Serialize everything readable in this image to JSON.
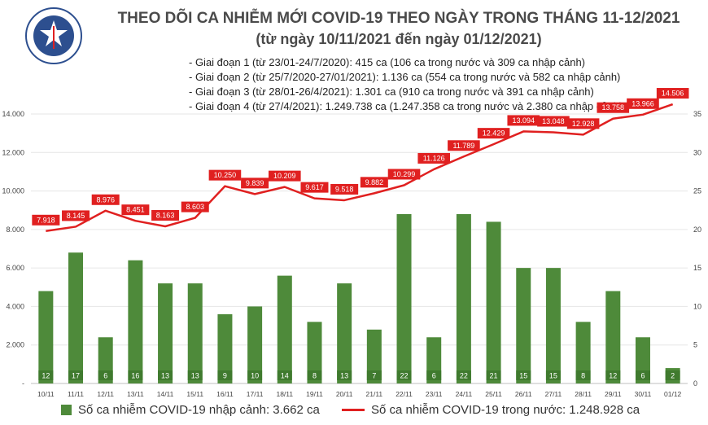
{
  "header": {
    "logo_text_top": "BỘ Y TẾ",
    "logo_text_bottom": "MINISTRY OF HEALTH",
    "title": "THEO DÕI CA NHIỄM MỚI COVID-19 THEO NGÀY TRONG THÁNG 11-12/2021",
    "subtitle": "(từ ngày 10/11/2021 đến ngày 01/12/2021)"
  },
  "phases": [
    "- Giai đoạn 1 (từ 23/01-24/7/2020): 415 ca (106 ca trong nước và 309 ca nhập cảnh)",
    "- Giai đoạn 2 (từ 25/7/2020-27/01/2021): 1.136 ca (554 ca trong nước và 582 ca nhập cảnh)",
    "- Giai đoạn 3 (từ 28/01-26/4/2021): 1.301 ca (910 ca trong nước và 391 ca nhập cảnh)",
    "- Giai đoạn 4 (từ 27/4/2021): 1.249.738 ca (1.247.358 ca trong nước và 2.380 ca nhập cảnh)"
  ],
  "legend": {
    "bar_label": "Số ca nhiễm COVID-19 nhập cảnh: 3.662 ca",
    "line_label": "Số ca nhiễm COVID-19 trong nước: 1.248.928 ca"
  },
  "colors": {
    "bar": "#4e8a3a",
    "bar_label_bg": "#3f7a2e",
    "line": "#e02020",
    "line_label_bg": "#e02020",
    "grid": "#e6e6e6",
    "title": "#4a4a4a"
  },
  "chart_data": {
    "type": "bar+line",
    "categories": [
      "10/11",
      "11/11",
      "12/11",
      "13/11",
      "14/11",
      "15/11",
      "16/11",
      "17/11",
      "18/11",
      "19/11",
      "20/11",
      "21/11",
      "22/11",
      "23/11",
      "24/11",
      "25/11",
      "26/11",
      "27/11",
      "28/11",
      "29/11",
      "30/11",
      "01/12"
    ],
    "series": [
      {
        "name": "Số ca nhiễm COVID-19 nhập cảnh: 3.662 ca",
        "type": "bar",
        "axis": "right",
        "values": [
          12,
          17,
          6,
          16,
          13,
          13,
          9,
          10,
          14,
          8,
          13,
          7,
          22,
          6,
          22,
          21,
          15,
          15,
          8,
          12,
          6,
          2
        ]
      },
      {
        "name": "Số ca nhiễm COVID-19 trong nước: 1.248.928 ca",
        "type": "line",
        "axis": "left",
        "values": [
          7918,
          8145,
          8976,
          8451,
          8163,
          8603,
          10250,
          9839,
          10209,
          9617,
          9518,
          9882,
          10299,
          11126,
          11789,
          12429,
          13094,
          13048,
          12928,
          13758,
          13966,
          14506
        ],
        "labels": [
          "7.918",
          "8.145",
          "8.976",
          "8.451",
          "8.163",
          "8.603",
          "10.250",
          "9.839",
          "10.209",
          "9.617",
          "9.518",
          "9.882",
          "10.299",
          "11.126",
          "11.789",
          "12.429",
          "13.094",
          "13.048",
          "12.928",
          "13.758",
          "13.966",
          "14.506"
        ]
      }
    ],
    "y_left": {
      "range": [
        0,
        14000
      ],
      "ticks": [
        "-",
        "2.000",
        "4.000",
        "6.000",
        "8.000",
        "10.000",
        "12.000",
        "14.000"
      ]
    },
    "y_right": {
      "range": [
        0,
        35
      ],
      "ticks": [
        "0",
        "5",
        "10",
        "15",
        "20",
        "25",
        "30",
        "35"
      ]
    },
    "grid": true,
    "legend_position": "bottom"
  }
}
